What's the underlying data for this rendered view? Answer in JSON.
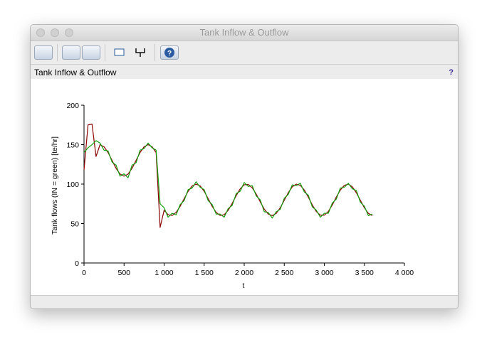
{
  "window": {
    "title": "Tank Inflow & Outflow"
  },
  "panel": {
    "help": "?"
  },
  "chart_data": {
    "type": "line",
    "title": "Tank Inflow & Outflow",
    "x_label": "t",
    "y_label": "Tank flows (IN = green) [te/hr]",
    "x": [
      0,
      50,
      100,
      150,
      200,
      250,
      300,
      350,
      400,
      450,
      500,
      550,
      600,
      650,
      700,
      750,
      800,
      850,
      900,
      950,
      1000,
      1050,
      1100,
      1150,
      1200,
      1250,
      1300,
      1350,
      1400,
      1450,
      1500,
      1550,
      1600,
      1650,
      1700,
      1750,
      1800,
      1850,
      1900,
      1950,
      2000,
      2050,
      2100,
      2150,
      2200,
      2250,
      2300,
      2350,
      2400,
      2450,
      2500,
      2550,
      2600,
      2650,
      2700,
      2750,
      2800,
      2850,
      2900,
      2950,
      3000,
      3050,
      3100,
      3150,
      3200,
      3250,
      3300,
      3350,
      3400,
      3450,
      3500,
      3550,
      3600
    ],
    "series": [
      {
        "color": "#8b0000",
        "values": [
          118,
          175,
          176,
          135,
          150,
          147.3,
          140,
          130,
          120,
          112.7,
          110,
          112.7,
          120,
          130,
          140,
          147.3,
          150,
          147.3,
          140,
          45,
          66.8,
          61.2,
          60.2,
          64.1,
          71.8,
          81.5,
          90.9,
          97.6,
          100,
          97.6,
          90.9,
          81.5,
          71.8,
          64.1,
          60.2,
          61.2,
          66.8,
          75.5,
          85.4,
          94,
          99.1,
          99.6,
          95.3,
          87.3,
          77.5,
          68.3,
          62,
          60,
          62.9,
          70,
          79.5,
          89.1,
          96.5,
          99.9,
          98.4,
          92.5,
          83.5,
          73.6,
          65.3,
          60.6,
          60.6,
          65.3,
          73.6,
          83.5,
          92.5,
          98.4,
          99.9,
          96.5,
          89.1,
          79.5,
          70,
          62.9,
          60
        ]
      },
      {
        "color": "#13a10e",
        "values": [
          140,
          146,
          150,
          155,
          152,
          143,
          142,
          128,
          124,
          110,
          113,
          108,
          124,
          127,
          143,
          145,
          152,
          146,
          143,
          75,
          70,
          58,
          63,
          61,
          74,
          79,
          93,
          95,
          103,
          96,
          93,
          79,
          74,
          62,
          62,
          58,
          69,
          73,
          88,
          91,
          102,
          97,
          98,
          85,
          80,
          65,
          64,
          57,
          65,
          68,
          82,
          87,
          99,
          98,
          101,
          90,
          86,
          71,
          67,
          58,
          63,
          63,
          76,
          81,
          95,
          96,
          101,
          94,
          92,
          77,
          72,
          60,
          62
        ]
      }
    ],
    "xlim": [
      0,
      4000
    ],
    "xticks": [
      0,
      500,
      {
        "value": 1000,
        "label": "1 000"
      },
      {
        "value": 1500,
        "label": "1 500"
      },
      {
        "value": 2000,
        "label": "2 000"
      },
      {
        "value": 2500,
        "label": "2 500"
      },
      {
        "value": 3000,
        "label": "3 000"
      },
      {
        "value": 3500,
        "label": "3 500"
      },
      {
        "value": 4000,
        "label": "4 000"
      }
    ],
    "ylim": [
      0,
      200
    ],
    "yticks": [
      0,
      50,
      100,
      150,
      200
    ]
  }
}
